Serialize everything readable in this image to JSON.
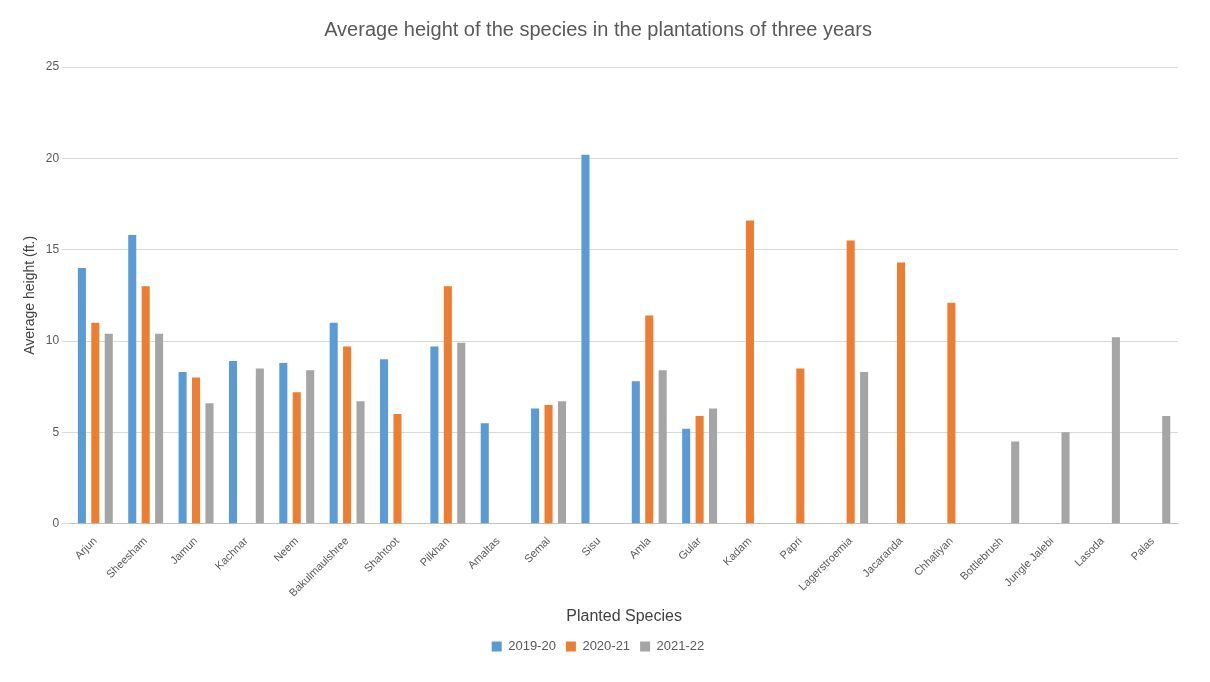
{
  "chart_data": {
    "type": "bar",
    "title": "Average height of the species in the plantations of three years",
    "xlabel": "Planted Species",
    "ylabel": "Average height (ft.)",
    "categories": [
      "Arjun",
      "Sheesham",
      "Jamun",
      "Kachnar",
      "Neem",
      "Bakulmaulshree",
      "Shahtoot",
      "Pilkhan",
      "Amaltas",
      "Semal",
      "Sisu",
      "Amla",
      "Gular",
      "Kadam",
      "Papri",
      "Lagerstroemia",
      "Jacaranda",
      "Chhatiyan",
      "Bottlebrush",
      "Jungle Jalebi",
      "Lasoda",
      "Palas"
    ],
    "series": [
      {
        "name": "2019-20",
        "color": "#5b9bd5",
        "values": [
          14,
          15.8,
          8.3,
          8.9,
          8.8,
          11,
          9,
          9.7,
          5.5,
          6.3,
          20.2,
          7.8,
          5.2,
          null,
          null,
          null,
          null,
          null,
          null,
          null,
          null,
          null
        ]
      },
      {
        "name": "2020-21",
        "color": "#ed7d31",
        "values": [
          11,
          13,
          8,
          null,
          7.2,
          9.7,
          6,
          13,
          null,
          6.5,
          null,
          11.4,
          5.9,
          16.6,
          8.5,
          15.5,
          14.3,
          12.1,
          null,
          null,
          null,
          null
        ]
      },
      {
        "name": "2021-22",
        "color": "#a5a5a5",
        "values": [
          10.4,
          10.4,
          6.6,
          8.5,
          8.4,
          6.7,
          null,
          9.9,
          null,
          6.7,
          null,
          8.4,
          6.3,
          null,
          null,
          8.3,
          null,
          null,
          4.5,
          5,
          10.2,
          5.9
        ]
      }
    ],
    "ylim": [
      0,
      25
    ],
    "yticks": [
      0,
      5,
      10,
      15,
      20,
      25
    ],
    "grid": "y",
    "legend": "bottom"
  }
}
